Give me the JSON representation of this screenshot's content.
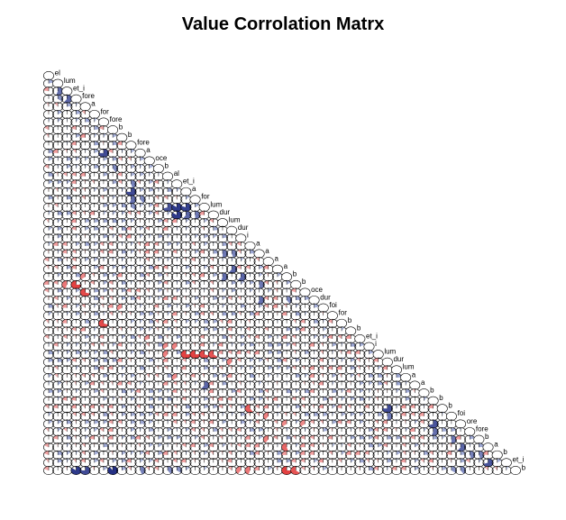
{
  "chart_data": {
    "type": "heatmap",
    "title": "Value Corrolation Matrx",
    "layout": "lower-triangle",
    "glyph": "pie (shaded fraction = |r|)",
    "colors": {
      "negative": "#e83a3a",
      "positive": "#2c3fa8",
      "outline": "#000000",
      "background": "#ffffff"
    },
    "value_range": [
      -1,
      1
    ],
    "n_variables": 52,
    "diagonal_labels": [
      "el",
      "lum",
      "et_i",
      "fore",
      "a",
      "for",
      "fore",
      "b",
      "b",
      "fore",
      "a",
      "oce",
      "b",
      "al",
      "et_i",
      "a",
      "for",
      "lum",
      "dur",
      "lum",
      "dur",
      "i",
      "a",
      "a",
      "a",
      "a",
      "b",
      "b",
      "oce",
      "dur",
      "foi",
      "for",
      "b",
      "b",
      "et_i",
      "i",
      "lum",
      "dur",
      "lum",
      "a",
      "a",
      "b",
      "b",
      "b",
      "foi",
      "ore",
      "fore",
      "b",
      "a",
      "b",
      "et_i",
      "b"
    ],
    "notable_cells": [
      {
        "row": 2,
        "col": 1,
        "r": 0.55
      },
      {
        "row": 3,
        "col": 1,
        "r": 0.35
      },
      {
        "row": 3,
        "col": 2,
        "r": 0.6
      },
      {
        "row": 10,
        "col": 6,
        "r": 0.75
      },
      {
        "row": 12,
        "col": 7,
        "r": 0.4
      },
      {
        "row": 14,
        "col": 9,
        "r": 0.45
      },
      {
        "row": 15,
        "col": 9,
        "r": 0.75
      },
      {
        "row": 16,
        "col": 9,
        "r": 0.55
      },
      {
        "row": 16,
        "col": 10,
        "r": 0.4
      },
      {
        "row": 17,
        "col": 9,
        "r": 0.35
      },
      {
        "row": 17,
        "col": 13,
        "r": 0.7
      },
      {
        "row": 17,
        "col": 14,
        "r": 0.85
      },
      {
        "row": 17,
        "col": 15,
        "r": 0.8
      },
      {
        "row": 18,
        "col": 14,
        "r": 0.85
      },
      {
        "row": 18,
        "col": 15,
        "r": 0.6
      },
      {
        "row": 18,
        "col": 16,
        "r": 0.5
      },
      {
        "row": 23,
        "col": 19,
        "r": 0.5
      },
      {
        "row": 23,
        "col": 20,
        "r": 0.45
      },
      {
        "row": 25,
        "col": 20,
        "r": 0.6
      },
      {
        "row": 26,
        "col": 19,
        "r": 0.55
      },
      {
        "row": 26,
        "col": 21,
        "r": 0.6
      },
      {
        "row": 27,
        "col": 23,
        "r": 0.5
      },
      {
        "row": 29,
        "col": 23,
        "r": 0.55
      },
      {
        "row": 29,
        "col": 26,
        "r": 0.4
      },
      {
        "row": 27,
        "col": 3,
        "r": -0.75
      },
      {
        "row": 27,
        "col": 2,
        "r": -0.45
      },
      {
        "row": 28,
        "col": 4,
        "r": -0.7
      },
      {
        "row": 26,
        "col": 4,
        "r": -0.35
      },
      {
        "row": 30,
        "col": 8,
        "r": -0.35
      },
      {
        "row": 32,
        "col": 6,
        "r": -0.7
      },
      {
        "row": 35,
        "col": 13,
        "r": -0.35
      },
      {
        "row": 35,
        "col": 14,
        "r": -0.4
      },
      {
        "row": 36,
        "col": 13,
        "r": -0.4
      },
      {
        "row": 36,
        "col": 15,
        "r": -0.75
      },
      {
        "row": 36,
        "col": 16,
        "r": -0.75
      },
      {
        "row": 36,
        "col": 17,
        "r": -0.7
      },
      {
        "row": 36,
        "col": 18,
        "r": -0.65
      },
      {
        "row": 37,
        "col": 20,
        "r": -0.4
      },
      {
        "row": 34,
        "col": 11,
        "r": -0.3
      },
      {
        "row": 39,
        "col": 14,
        "r": -0.35
      },
      {
        "row": 40,
        "col": 17,
        "r": 0.6
      },
      {
        "row": 43,
        "col": 22,
        "r": -0.6
      },
      {
        "row": 44,
        "col": 24,
        "r": -0.4
      },
      {
        "row": 45,
        "col": 26,
        "r": -0.35
      },
      {
        "row": 45,
        "col": 28,
        "r": -0.35
      },
      {
        "row": 47,
        "col": 24,
        "r": -0.4
      },
      {
        "row": 48,
        "col": 26,
        "r": -0.55
      },
      {
        "row": 43,
        "col": 37,
        "r": 0.75
      },
      {
        "row": 44,
        "col": 37,
        "r": 0.5
      },
      {
        "row": 45,
        "col": 42,
        "r": 0.7
      },
      {
        "row": 46,
        "col": 42,
        "r": 0.55
      },
      {
        "row": 47,
        "col": 44,
        "r": 0.5
      },
      {
        "row": 48,
        "col": 45,
        "r": 0.6
      },
      {
        "row": 49,
        "col": 46,
        "r": 0.45
      },
      {
        "row": 49,
        "col": 47,
        "r": 0.45
      },
      {
        "row": 50,
        "col": 48,
        "r": 0.7
      },
      {
        "row": 51,
        "col": 3,
        "r": 0.85
      },
      {
        "row": 51,
        "col": 4,
        "r": 0.75
      },
      {
        "row": 51,
        "col": 7,
        "r": 0.9
      },
      {
        "row": 51,
        "col": 10,
        "r": 0.45
      },
      {
        "row": 51,
        "col": 13,
        "r": 0.4
      },
      {
        "row": 51,
        "col": 14,
        "r": 0.35
      },
      {
        "row": 51,
        "col": 21,
        "r": -0.4
      },
      {
        "row": 51,
        "col": 22,
        "r": -0.45
      },
      {
        "row": 51,
        "col": 26,
        "r": -0.75
      },
      {
        "row": 51,
        "col": 27,
        "r": -0.65
      },
      {
        "row": 51,
        "col": 44,
        "r": 0.35
      },
      {
        "row": 51,
        "col": 45,
        "r": 0.4
      }
    ],
    "other_cells": "|r| < 0.3 (faint slivers)"
  }
}
